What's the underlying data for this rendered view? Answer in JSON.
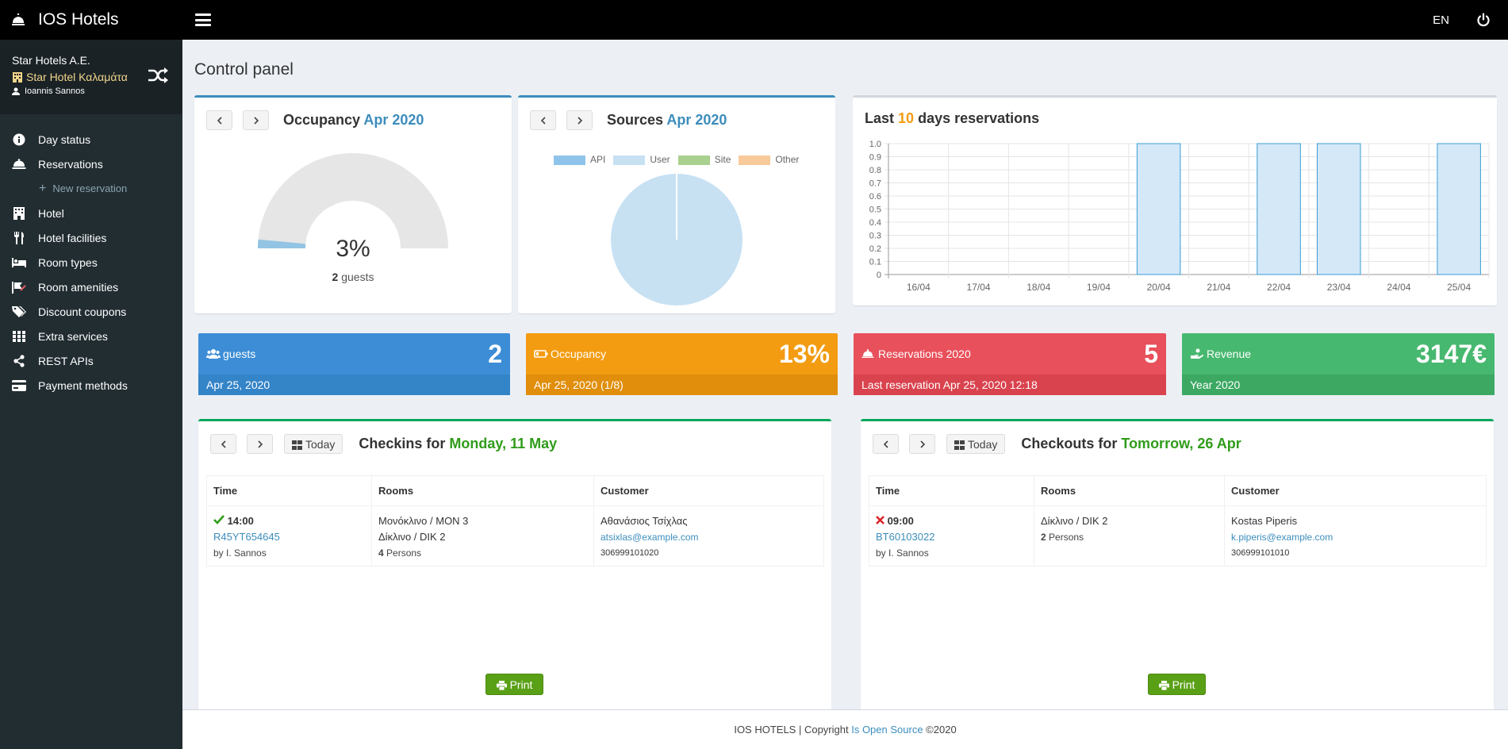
{
  "app": {
    "title": "IOS Hotels",
    "lang": "EN"
  },
  "sidebar": {
    "company": "Star Hotels A.E.",
    "hotel": "Star Hotel Καλαμάτα",
    "user": "Ioannis Sannos",
    "items": [
      {
        "label": "Day status",
        "icon": "info-icon"
      },
      {
        "label": "Reservations",
        "icon": "bell-icon"
      },
      {
        "label": "New reservation",
        "icon": "plus-icon"
      },
      {
        "label": "Hotel",
        "icon": "building-icon"
      },
      {
        "label": "Hotel facilities",
        "icon": "cutlery-icon"
      },
      {
        "label": "Room types",
        "icon": "bed-icon"
      },
      {
        "label": "Room amenities",
        "icon": "amenities-icon"
      },
      {
        "label": "Discount coupons",
        "icon": "tags-icon"
      },
      {
        "label": "Extra services",
        "icon": "grid-icon"
      },
      {
        "label": "REST APIs",
        "icon": "share-icon"
      },
      {
        "label": "Payment methods",
        "icon": "credit-card-icon"
      }
    ]
  },
  "page_title": "Control panel",
  "occupancy": {
    "title": "Occupancy",
    "period": "Apr 2020",
    "percent": "3%",
    "percent_value": 0.03,
    "guests_count": "2",
    "guests_label": "guests",
    "color": "#93c4e4"
  },
  "sources": {
    "title": "Sources",
    "period": "Apr 2020",
    "legend": [
      {
        "label": "API",
        "color": "#8fc4ea"
      },
      {
        "label": "User",
        "color": "#c7e1f3"
      },
      {
        "label": "Site",
        "color": "#a9d08e"
      },
      {
        "label": "Other",
        "color": "#f8c99b"
      }
    ]
  },
  "chart_data": {
    "type": "bar",
    "title_prefix": "Last",
    "title_number": "10",
    "title_suffix": "days reservations",
    "categories": [
      "16/04",
      "17/04",
      "18/04",
      "19/04",
      "20/04",
      "21/04",
      "22/04",
      "23/04",
      "24/04",
      "25/04"
    ],
    "values": [
      0,
      0,
      0,
      0,
      1,
      0,
      1,
      1,
      0,
      1
    ],
    "yticks": [
      "0",
      "0.1",
      "0.2",
      "0.3",
      "0.4",
      "0.5",
      "0.6",
      "0.7",
      "0.8",
      "0.9",
      "1.0"
    ],
    "ylim": [
      0,
      1
    ],
    "grid": true,
    "bar_color": "#d4e8f7",
    "bar_border": "#3c9dd6"
  },
  "infoboxes": [
    {
      "label": "guests",
      "value": "2",
      "footer": "Apr 25, 2020",
      "color": "#3c8dd6",
      "foot_color": "#3484c8"
    },
    {
      "label": "Occupancy",
      "value": "13%",
      "footer": "Apr 25, 2020 (1/8)",
      "color": "#f39c12",
      "foot_color": "#e08e0b"
    },
    {
      "label": "Reservations 2020",
      "value": "5",
      "footer": "Last reservation Apr 25, 2020 12:18",
      "color": "#e8505b",
      "foot_color": "#d9434e"
    },
    {
      "label": "Revenue",
      "value": "3147€",
      "footer": "Year 2020",
      "color": "#47b86f",
      "foot_color": "#3ca862"
    }
  ],
  "checkins": {
    "title": "Checkins for",
    "date": "Monday, 11 May",
    "today": "Today",
    "headers": [
      "Time",
      "Rooms",
      "Customer"
    ],
    "row": {
      "time": "14:00",
      "code": "R45YT654645",
      "by": "by I. Sannos",
      "room1": "Μονόκλινο / MON 3",
      "room2": "Δίκλινο / DIK 2",
      "persons_n": "4",
      "persons_label": "Persons",
      "customer": "Αθανάσιος Τσίχλας",
      "email": "atsixlas@example.com",
      "phone": "306999101020"
    },
    "print": "Print"
  },
  "checkouts": {
    "title": "Checkouts for",
    "date": "Tomorrow, 26 Apr",
    "today": "Today",
    "headers": [
      "Time",
      "Rooms",
      "Customer"
    ],
    "row": {
      "time": "09:00",
      "code": "BT60103022",
      "by": "by I. Sannos",
      "room1": "Δίκλινο / DIK 2",
      "persons_n": "2",
      "persons_label": "Persons",
      "customer": "Kostas Piperis",
      "email": "k.piperis@example.com",
      "phone": "306999101010"
    },
    "print": "Print"
  },
  "footer": {
    "prefix": "IOS HOTELS | Copyright",
    "link": "Is Open Source",
    "suffix": "©2020"
  }
}
